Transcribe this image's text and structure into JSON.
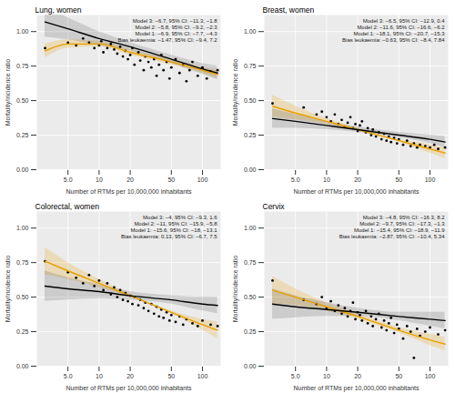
{
  "chart_data": [
    {
      "type": "scatter",
      "title": "Lung, women",
      "xlabel": "Number of RTMs per 10,000,000 inhabitants",
      "ylabel": "Mortality/incidence ratio",
      "log": "x",
      "grid": true,
      "color": "#000000",
      "marker": "circle",
      "xlim": [
        2.5,
        150
      ],
      "xticks": [
        {
          "value": 5,
          "label": "5.0"
        },
        10,
        20,
        50,
        100
      ],
      "ylim": [
        0,
        1.12
      ],
      "yticks": [
        {
          "value": 0,
          "label": "0.00"
        },
        0.25,
        {
          "value": 0.5,
          "label": "0.50"
        },
        0.75,
        {
          "value": 1,
          "label": "1.00"
        }
      ],
      "x": [
        3,
        5,
        6,
        7,
        8,
        9,
        10,
        10.5,
        11,
        12,
        13,
        14,
        15,
        16,
        17,
        18,
        19,
        20,
        21,
        22,
        24,
        25,
        27,
        28,
        30,
        32,
        34,
        36,
        38,
        40,
        42,
        45,
        48,
        50,
        55,
        60,
        65,
        70,
        75,
        80,
        90,
        100,
        110,
        120,
        140
      ],
      "values": [
        0.88,
        0.92,
        0.9,
        0.95,
        0.92,
        0.88,
        0.9,
        0.93,
        0.85,
        0.88,
        0.91,
        0.87,
        0.84,
        0.89,
        0.82,
        0.86,
        0.8,
        0.83,
        0.88,
        0.76,
        0.85,
        0.79,
        0.72,
        0.82,
        0.78,
        0.74,
        0.8,
        0.68,
        0.76,
        0.83,
        0.72,
        0.78,
        0.66,
        0.74,
        0.8,
        0.7,
        0.76,
        0.64,
        0.72,
        0.78,
        0.68,
        0.74,
        0.66,
        0.71,
        0.72
      ],
      "series": [
        {
          "type": "line",
          "color": "#E69F00",
          "x": [
            3,
            5,
            10,
            20,
            50,
            100,
            140
          ],
          "values": [
            0.86,
            0.91,
            0.91,
            0.85,
            0.78,
            0.72,
            0.69
          ],
          "lower": [
            0.81,
            0.88,
            0.89,
            0.83,
            0.76,
            0.7,
            0.66
          ],
          "upper": [
            0.91,
            0.94,
            0.93,
            0.87,
            0.8,
            0.74,
            0.72
          ]
        },
        {
          "type": "line",
          "color": "#000000",
          "x": [
            3,
            5,
            10,
            20,
            50,
            100,
            140
          ],
          "values": [
            1.07,
            1.02,
            0.95,
            0.89,
            0.8,
            0.73,
            0.7
          ],
          "lower": [
            0.96,
            0.94,
            0.9,
            0.86,
            0.77,
            0.69,
            0.65
          ],
          "upper": [
            1.18,
            1.1,
            1.0,
            0.92,
            0.83,
            0.77,
            0.75
          ]
        }
      ],
      "annotations": [
        "Model 3: −6.7, 95% CI: −11.3, −1.8",
        "Model 2: −5.8, 95% CI: −9.2, −2.3",
        "Model 1: −6.9, 95% CI: −7.7, −4.3",
        "Bias leukaemia: −1.47, 95% CI: −9.4, 7.2"
      ]
    },
    {
      "type": "scatter",
      "title": "Breast, women",
      "xlabel": "Number of RTMs per 10,000,000 inhabitants",
      "ylabel": "Mortality/incidence ratio",
      "log": "x",
      "grid": true,
      "color": "#000000",
      "marker": "circle",
      "xlim": [
        2.5,
        150
      ],
      "xticks": [
        {
          "value": 5,
          "label": "5.0"
        },
        10,
        20,
        50,
        100
      ],
      "ylim": [
        0,
        1.12
      ],
      "yticks": [
        {
          "value": 0,
          "label": "0.00"
        },
        0.25,
        {
          "value": 0.5,
          "label": "0.50"
        },
        0.75,
        {
          "value": 1,
          "label": "1.00"
        }
      ],
      "x": [
        3,
        6,
        8,
        9,
        10,
        11,
        12,
        13,
        14,
        15,
        16,
        17,
        18,
        19,
        20,
        21,
        22,
        24,
        25,
        27,
        28,
        30,
        32,
        34,
        36,
        38,
        40,
        42,
        45,
        48,
        50,
        55,
        60,
        65,
        70,
        75,
        80,
        90,
        100,
        110,
        120,
        140
      ],
      "values": [
        0.48,
        0.45,
        0.4,
        0.42,
        0.38,
        0.35,
        0.4,
        0.33,
        0.36,
        0.31,
        0.34,
        0.38,
        0.3,
        0.33,
        0.28,
        0.32,
        0.35,
        0.27,
        0.3,
        0.25,
        0.29,
        0.24,
        0.27,
        0.22,
        0.26,
        0.21,
        0.24,
        0.2,
        0.23,
        0.19,
        0.22,
        0.18,
        0.21,
        0.17,
        0.19,
        0.16,
        0.18,
        0.17,
        0.16,
        0.18,
        0.15,
        0.16
      ],
      "series": [
        {
          "type": "line",
          "color": "#E69F00",
          "x": [
            3,
            5,
            10,
            20,
            50,
            100,
            140
          ],
          "values": [
            0.46,
            0.41,
            0.35,
            0.29,
            0.21,
            0.15,
            0.12
          ],
          "lower": [
            0.38,
            0.36,
            0.33,
            0.28,
            0.2,
            0.12,
            0.08
          ],
          "upper": [
            0.54,
            0.46,
            0.37,
            0.3,
            0.22,
            0.18,
            0.16
          ]
        },
        {
          "type": "line",
          "color": "#000000",
          "x": [
            3,
            5,
            10,
            20,
            50,
            100,
            140
          ],
          "values": [
            0.37,
            0.35,
            0.32,
            0.29,
            0.25,
            0.22,
            0.2
          ],
          "lower": [
            0.3,
            0.3,
            0.29,
            0.27,
            0.23,
            0.19,
            0.16
          ],
          "upper": [
            0.44,
            0.4,
            0.35,
            0.31,
            0.27,
            0.25,
            0.24
          ]
        }
      ],
      "annotations": [
        "Model 3: −6.5, 95% CI: −12.9, 0.4",
        "Model 2: −11.6, 95% CI: −16.6, −6.2",
        "Model 1: −18.1, 95% CI: −20.7, −15.3",
        "Bias leukaemia: −0.63, 95% CI: −8.4, 7.84"
      ]
    },
    {
      "type": "scatter",
      "title": "Colorectal, women",
      "xlabel": "Number of RTMs per 10,000,000 inhabitants",
      "ylabel": "Mortality/incidence ratio",
      "log": "x",
      "grid": true,
      "color": "#000000",
      "marker": "circle",
      "xlim": [
        2.5,
        150
      ],
      "xticks": [
        {
          "value": 5,
          "label": "5.0"
        },
        10,
        20,
        50,
        100
      ],
      "ylim": [
        0,
        1.12
      ],
      "yticks": [
        {
          "value": 0,
          "label": "0.00"
        },
        0.25,
        {
          "value": 0.5,
          "label": "0.50"
        },
        0.75,
        {
          "value": 1,
          "label": "1.00"
        }
      ],
      "x": [
        3,
        5,
        6,
        7,
        8,
        9,
        10,
        11,
        12,
        13,
        14,
        15,
        16,
        17,
        18,
        19,
        20,
        21,
        22,
        24,
        25,
        27,
        28,
        30,
        32,
        34,
        36,
        38,
        40,
        42,
        45,
        48,
        50,
        55,
        60,
        65,
        70,
        80,
        90,
        100,
        120,
        140
      ],
      "values": [
        0.76,
        0.68,
        0.64,
        0.6,
        0.66,
        0.58,
        0.62,
        0.55,
        0.6,
        0.52,
        0.57,
        0.5,
        0.55,
        0.48,
        0.53,
        0.47,
        0.51,
        0.45,
        0.5,
        0.44,
        0.48,
        0.42,
        0.46,
        0.4,
        0.45,
        0.38,
        0.43,
        0.36,
        0.41,
        0.35,
        0.39,
        0.33,
        0.37,
        0.32,
        0.36,
        0.3,
        0.34,
        0.31,
        0.29,
        0.33,
        0.3,
        0.29
      ],
      "series": [
        {
          "type": "line",
          "color": "#E69F00",
          "x": [
            3,
            5,
            10,
            20,
            50,
            100,
            140
          ],
          "values": [
            0.76,
            0.69,
            0.6,
            0.51,
            0.39,
            0.3,
            0.26
          ],
          "lower": [
            0.66,
            0.63,
            0.57,
            0.5,
            0.38,
            0.26,
            0.2
          ],
          "upper": [
            0.86,
            0.75,
            0.63,
            0.52,
            0.4,
            0.34,
            0.32
          ]
        },
        {
          "type": "line",
          "color": "#000000",
          "x": [
            3,
            5,
            10,
            20,
            50,
            100,
            140
          ],
          "values": [
            0.58,
            0.56,
            0.54,
            0.51,
            0.48,
            0.45,
            0.44
          ],
          "lower": [
            0.47,
            0.48,
            0.49,
            0.48,
            0.45,
            0.4,
            0.38
          ],
          "upper": [
            0.69,
            0.64,
            0.59,
            0.54,
            0.51,
            0.5,
            0.5
          ]
        }
      ],
      "annotations": [
        "Model 3: −4, 95% CI: −9.3, 1.6",
        "Model 2: −11, 95% CI: −15.9, −5.8",
        "Model 1: −15.6, 95% CI: −18, −13.1",
        "Bias leukaemia: 0.13, 95% CI: −6.7, 7.5"
      ]
    },
    {
      "type": "scatter",
      "title": "Cervix",
      "xlabel": "Number of RTMs per 10,000,000 inhabitants",
      "ylabel": "Mortality/incidence ratio",
      "log": "x",
      "grid": true,
      "color": "#000000",
      "marker": "circle",
      "xlim": [
        2.5,
        150
      ],
      "xticks": [
        {
          "value": 5,
          "label": "5.0"
        },
        10,
        20,
        50,
        100
      ],
      "ylim": [
        0,
        1.12
      ],
      "yticks": [
        {
          "value": 0,
          "label": "0.00"
        },
        0.25,
        {
          "value": 0.5,
          "label": "0.50"
        },
        0.75,
        {
          "value": 1,
          "label": "1.00"
        }
      ],
      "x": [
        3,
        6,
        8,
        9,
        10,
        11,
        12,
        13,
        14,
        15,
        16,
        17,
        18,
        19,
        20,
        21,
        22,
        24,
        25,
        27,
        28,
        30,
        32,
        34,
        36,
        38,
        40,
        42,
        45,
        48,
        50,
        55,
        60,
        65,
        70,
        75,
        80,
        90,
        100,
        120,
        140
      ],
      "values": [
        0.62,
        0.48,
        0.45,
        0.5,
        0.42,
        0.47,
        0.4,
        0.44,
        0.38,
        0.42,
        0.36,
        0.4,
        0.46,
        0.34,
        0.39,
        0.37,
        0.33,
        0.4,
        0.31,
        0.36,
        0.29,
        0.34,
        0.38,
        0.28,
        0.33,
        0.26,
        0.31,
        0.35,
        0.24,
        0.3,
        0.27,
        0.2,
        0.29,
        0.25,
        0.06,
        0.27,
        0.22,
        0.25,
        0.28,
        0.23,
        0.26
      ],
      "series": [
        {
          "type": "line",
          "color": "#E69F00",
          "x": [
            3,
            5,
            10,
            20,
            50,
            100,
            140
          ],
          "values": [
            0.55,
            0.5,
            0.43,
            0.36,
            0.26,
            0.19,
            0.16
          ],
          "lower": [
            0.45,
            0.44,
            0.4,
            0.34,
            0.24,
            0.15,
            0.11
          ],
          "upper": [
            0.65,
            0.56,
            0.46,
            0.38,
            0.28,
            0.23,
            0.21
          ]
        },
        {
          "type": "line",
          "color": "#000000",
          "x": [
            3,
            5,
            10,
            20,
            50,
            100,
            140
          ],
          "values": [
            0.45,
            0.43,
            0.41,
            0.39,
            0.36,
            0.34,
            0.33
          ],
          "lower": [
            0.34,
            0.35,
            0.36,
            0.36,
            0.33,
            0.29,
            0.27
          ],
          "upper": [
            0.56,
            0.51,
            0.46,
            0.42,
            0.39,
            0.39,
            0.39
          ]
        }
      ],
      "annotations": [
        "Model 3: −4.8, 95% CI: −16.3, 8.2",
        "Model 2: −9.7, 95% CI: −17.3, −1.3",
        "Model 1: −15.4, 95% CI: −18.9, −11.9",
        "Bias leukaemia: −2.87, 95% CI: −10.4, 5.34"
      ]
    }
  ]
}
